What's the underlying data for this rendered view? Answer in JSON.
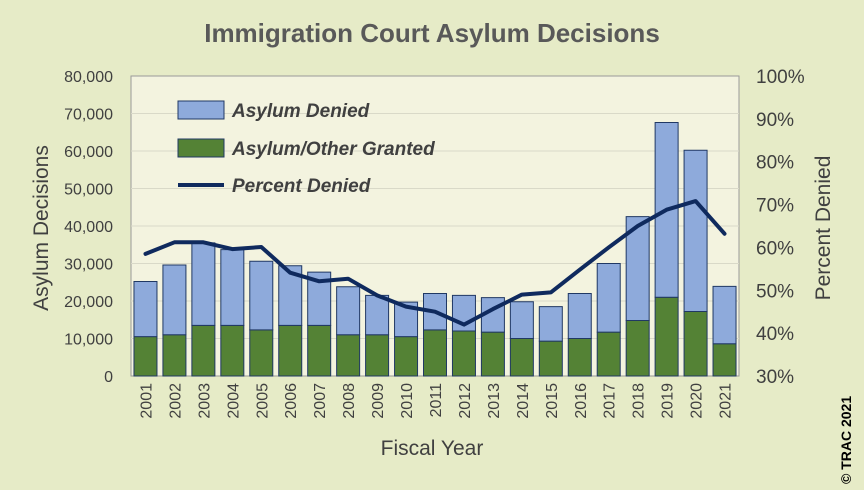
{
  "chart_data": {
    "type": "bar",
    "title": "Immigration Court Asylum Decisions",
    "xlabel": "Fiscal Year",
    "ylabel": "Asylum Decisions",
    "y2label": "Percent Denied",
    "ylim": [
      0,
      80000
    ],
    "y2lim": [
      30,
      100
    ],
    "yticks": [
      "0",
      "10,000",
      "20,000",
      "30,000",
      "40,000",
      "50,000",
      "60,000",
      "70,000",
      "80,000"
    ],
    "y2ticks": [
      "30%",
      "40%",
      "50%",
      "60%",
      "70%",
      "80%",
      "90%",
      "100%"
    ],
    "categories": [
      "2001",
      "2002",
      "2003",
      "2004",
      "2005",
      "2006",
      "2007",
      "2008",
      "2009",
      "2010",
      "2011",
      "2012",
      "2013",
      "2014",
      "2015",
      "2016",
      "2017",
      "2018",
      "2019",
      "2020",
      "2021"
    ],
    "series": [
      {
        "name": "Asylum/Other Granted",
        "kind": "stacked-bar",
        "color": "#548235",
        "values": [
          10500,
          11000,
          13500,
          13500,
          12300,
          13500,
          13500,
          11000,
          11000,
          10500,
          12300,
          12000,
          11700,
          10000,
          9300,
          10000,
          11700,
          14800,
          21000,
          17200,
          8600
        ]
      },
      {
        "name": "Asylum Denied",
        "kind": "stacked-bar",
        "color": "#8eaadb",
        "values": [
          14700,
          18600,
          22000,
          20200,
          18300,
          15900,
          14200,
          12800,
          10500,
          9200,
          9700,
          9500,
          9200,
          9800,
          9200,
          12000,
          18300,
          27700,
          46600,
          43000,
          15300
        ]
      },
      {
        "name": "Percent Denied",
        "kind": "line",
        "axis": "right",
        "color": "#0f2a5e",
        "values": [
          58.5,
          61.2,
          61.2,
          59.6,
          60.1,
          54.1,
          52.1,
          52.7,
          48.8,
          46.2,
          45.0,
          42.0,
          45.6,
          49.0,
          49.5,
          54.8,
          60.0,
          65.0,
          68.8,
          70.8,
          63.2
        ]
      }
    ],
    "legend": [
      "Asylum Denied",
      "Asylum/Other Granted",
      "Percent Denied"
    ],
    "legend_position": "top-left"
  },
  "copyright": "© TRAC 2021"
}
